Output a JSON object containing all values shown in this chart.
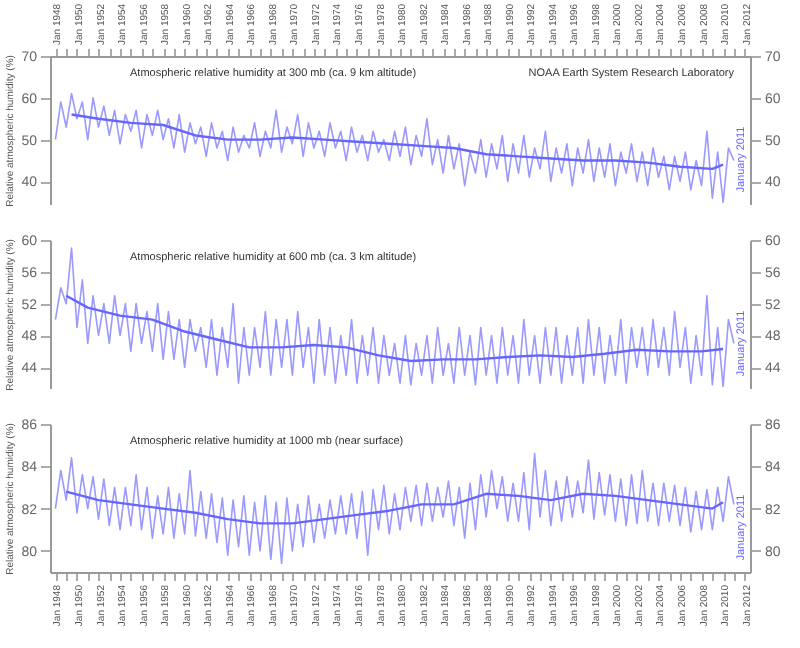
{
  "chart_data": [
    {
      "type": "line",
      "title": "Atmospheric relative humidity at 300 mb (ca. 9 km altitude)",
      "ylabel": "Relative atmospheric humidity (%)",
      "annotations": [
        "NOAA Earth System Research Laboratory",
        "January 2011"
      ],
      "xlim": [
        "1947-07",
        "2012-07"
      ],
      "ylim": [
        34.6,
        70
      ],
      "yticks": [
        40,
        50,
        60,
        70
      ],
      "y2lim": [
        34.6,
        70
      ],
      "y2ticks": [
        40,
        50,
        60,
        70
      ],
      "tick_labels": "xy",
      "grid": false,
      "line_style": "solid",
      "xticks": [
        {
          "value": "1948-01",
          "label": "Jan 1948"
        },
        {
          "value": "1949-01",
          "label": null
        },
        {
          "value": "1950-01",
          "label": "Jan 1950"
        },
        {
          "value": "1951-01",
          "label": null
        },
        {
          "value": "1952-01",
          "label": "Jan 1952"
        },
        {
          "value": "1953-01",
          "label": null
        },
        {
          "value": "1954-01",
          "label": "Jan 1954"
        },
        {
          "value": "1955-01",
          "label": null
        },
        {
          "value": "1956-01",
          "label": "Jan 1956"
        },
        {
          "value": "1957-01",
          "label": null
        },
        {
          "value": "1958-01",
          "label": "Jan 1958"
        },
        {
          "value": "1959-01",
          "label": null
        },
        {
          "value": "1960-01",
          "label": "Jan 1960"
        },
        {
          "value": "1961-01",
          "label": null
        },
        {
          "value": "1962-01",
          "label": "Jan 1962"
        },
        {
          "value": "1963-01",
          "label": null
        },
        {
          "value": "1964-01",
          "label": "Jan 1964"
        },
        {
          "value": "1965-01",
          "label": null
        },
        {
          "value": "1966-01",
          "label": "Jan 1966"
        },
        {
          "value": "1967-01",
          "label": null
        },
        {
          "value": "1968-01",
          "label": "Jan 1968"
        },
        {
          "value": "1969-01",
          "label": null
        },
        {
          "value": "1970-01",
          "label": "Jan 1970"
        },
        {
          "value": "1971-01",
          "label": null
        },
        {
          "value": "1972-01",
          "label": "Jan 1972"
        },
        {
          "value": "1973-01",
          "label": null
        },
        {
          "value": "1974-01",
          "label": "Jan 1974"
        },
        {
          "value": "1975-01",
          "label": null
        },
        {
          "value": "1976-01",
          "label": "Jan 1976"
        },
        {
          "value": "1977-01",
          "label": null
        },
        {
          "value": "1978-01",
          "label": "Jan 1978"
        },
        {
          "value": "1979-01",
          "label": null
        },
        {
          "value": "1980-01",
          "label": "Jan 1980"
        },
        {
          "value": "1981-01",
          "label": null
        },
        {
          "value": "1982-01",
          "label": "Jan 1982"
        },
        {
          "value": "1983-01",
          "label": null
        },
        {
          "value": "1984-01",
          "label": "Jan 1984"
        },
        {
          "value": "1985-01",
          "label": null
        },
        {
          "value": "1986-01",
          "label": "Jan 1986"
        },
        {
          "value": "1987-01",
          "label": null
        },
        {
          "value": "1988-01",
          "label": "Jan 1988"
        },
        {
          "value": "1989-01",
          "label": null
        },
        {
          "value": "1990-01",
          "label": "Jan 1990"
        },
        {
          "value": "1991-01",
          "label": null
        },
        {
          "value": "1992-01",
          "label": "Jan 1992"
        },
        {
          "value": "1993-01",
          "label": null
        },
        {
          "value": "1994-01",
          "label": "Jan 1994"
        },
        {
          "value": "1995-01",
          "label": null
        },
        {
          "value": "1996-01",
          "label": "Jan 1996"
        },
        {
          "value": "1997-01",
          "label": null
        },
        {
          "value": "1998-01",
          "label": "Jan 1998"
        },
        {
          "value": "1999-01",
          "label": null
        },
        {
          "value": "2000-01",
          "label": "Jan 2000"
        },
        {
          "value": "2001-01",
          "label": null
        },
        {
          "value": "2002-01",
          "label": "Jan 2002"
        },
        {
          "value": "2003-01",
          "label": null
        },
        {
          "value": "2004-01",
          "label": "Jan 2004"
        },
        {
          "value": "2005-01",
          "label": null
        },
        {
          "value": "2006-01",
          "label": "Jan 2006"
        },
        {
          "value": "2007-01",
          "label": null
        },
        {
          "value": "2008-01",
          "label": "Jan 2008"
        },
        {
          "value": "2009-01",
          "label": null
        },
        {
          "value": "2010-01",
          "label": "Jan 2010"
        },
        {
          "value": "2011-01",
          "label": null
        },
        {
          "value": "2012-01",
          "label": "Jan 2012"
        }
      ],
      "x": [
        "1948-01",
        "1948-07",
        "1949-01",
        "1949-07",
        "1950-01",
        "1950-07",
        "1951-01",
        "1951-07",
        "1952-01",
        "1952-07",
        "1953-01",
        "1953-07",
        "1954-01",
        "1954-07",
        "1955-01",
        "1955-07",
        "1956-01",
        "1956-07",
        "1957-01",
        "1957-07",
        "1958-01",
        "1958-07",
        "1959-01",
        "1959-07",
        "1960-01",
        "1960-07",
        "1961-01",
        "1961-07",
        "1962-01",
        "1962-07",
        "1963-01",
        "1963-07",
        "1964-01",
        "1964-07",
        "1965-01",
        "1965-07",
        "1966-01",
        "1966-07",
        "1967-01",
        "1967-07",
        "1968-01",
        "1968-07",
        "1969-01",
        "1969-07",
        "1970-01",
        "1970-07",
        "1971-01",
        "1971-07",
        "1972-01",
        "1972-07",
        "1973-01",
        "1973-07",
        "1974-01",
        "1974-07",
        "1975-01",
        "1975-07",
        "1976-01",
        "1976-07",
        "1977-01",
        "1977-07",
        "1978-01",
        "1978-07",
        "1979-01",
        "1979-07",
        "1980-01",
        "1980-07",
        "1981-01",
        "1981-07",
        "1982-01",
        "1982-07",
        "1983-01",
        "1983-07",
        "1984-01",
        "1984-07",
        "1985-01",
        "1985-07",
        "1986-01",
        "1986-07",
        "1987-01",
        "1987-07",
        "1988-01",
        "1988-07",
        "1989-01",
        "1989-07",
        "1990-01",
        "1990-07",
        "1991-01",
        "1991-07",
        "1992-01",
        "1992-07",
        "1993-01",
        "1993-07",
        "1994-01",
        "1994-07",
        "1995-01",
        "1995-07",
        "1996-01",
        "1996-07",
        "1997-01",
        "1997-07",
        "1998-01",
        "1998-07",
        "1999-01",
        "1999-07",
        "2000-01",
        "2000-07",
        "2001-01",
        "2001-07",
        "2002-01",
        "2002-07",
        "2003-01",
        "2003-07",
        "2004-01",
        "2004-07",
        "2005-01",
        "2005-07",
        "2006-01",
        "2006-07",
        "2007-01",
        "2007-07",
        "2008-01",
        "2008-07",
        "2009-01",
        "2009-07",
        "2010-01",
        "2010-07",
        "2011-01"
      ],
      "series": [
        {
          "color": "#9999ff",
          "values": [
            50,
            59,
            53,
            61,
            55,
            59,
            50,
            60,
            53,
            58,
            51,
            57,
            49,
            56,
            52,
            57,
            48,
            56,
            51,
            57,
            50,
            55,
            48,
            56,
            47,
            54,
            49,
            53,
            46,
            54,
            48,
            52,
            45,
            53,
            47,
            51,
            48,
            54,
            46,
            52,
            48,
            57,
            47,
            53,
            49,
            56,
            46,
            54,
            48,
            52,
            46,
            54,
            48,
            52,
            45,
            53,
            47,
            51,
            45,
            52,
            47,
            50,
            45,
            52,
            46,
            53,
            44,
            51,
            46,
            55,
            44,
            50,
            42,
            51,
            43,
            49,
            39,
            47,
            42,
            50,
            41,
            49,
            43,
            51,
            40,
            49,
            42,
            51,
            41,
            48,
            43,
            52,
            40,
            48,
            42,
            49,
            39,
            48,
            42,
            50,
            40,
            48,
            41,
            49,
            39,
            47,
            42,
            49,
            40,
            47,
            39,
            48,
            41,
            46,
            38,
            46,
            40,
            47,
            38,
            45,
            39,
            52,
            36,
            47,
            35,
            48,
            45
          ]
        },
        {
          "type": "line",
          "color": "#6666ff",
          "x": [
            "1949-07",
            "1952-01",
            "1955-01",
            "1958-01",
            "1961-01",
            "1964-01",
            "1967-01",
            "1970-01",
            "1973-01",
            "1976-01",
            "1979-01",
            "1982-01",
            "1985-01",
            "1988-01",
            "1991-01",
            "1994-01",
            "1997-01",
            "2000-01",
            "2003-01",
            "2006-01",
            "2009-01",
            "2010-01"
          ],
          "values": [
            56,
            55,
            54,
            53.5,
            51,
            50,
            50,
            50.5,
            50,
            49.5,
            49,
            48.5,
            48,
            46.5,
            46,
            45.5,
            45,
            45,
            44.5,
            43.5,
            43,
            44
          ]
        }
      ]
    },
    {
      "type": "line",
      "title": "Atmospheric relative humidity at 600 mb (ca. 3 km altitude)",
      "ylabel": "Relative atmospheric humidity (%)",
      "annotations": [
        "January 2011"
      ],
      "xlim": [
        "1947-07",
        "2012-07"
      ],
      "ylim": [
        41.4,
        60
      ],
      "yticks": [
        44,
        48,
        52,
        56,
        60
      ],
      "y2lim": [
        41.4,
        60
      ],
      "y2ticks": [
        44,
        48,
        52,
        56,
        60
      ],
      "tick_labels": "y",
      "grid": false,
      "line_style": "solid",
      "x": [
        "1948-01",
        "1948-07",
        "1949-01",
        "1949-07",
        "1950-01",
        "1950-07",
        "1951-01",
        "1951-07",
        "1952-01",
        "1952-07",
        "1953-01",
        "1953-07",
        "1954-01",
        "1954-07",
        "1955-01",
        "1955-07",
        "1956-01",
        "1956-07",
        "1957-01",
        "1957-07",
        "1958-01",
        "1958-07",
        "1959-01",
        "1959-07",
        "1960-01",
        "1960-07",
        "1961-01",
        "1961-07",
        "1962-01",
        "1962-07",
        "1963-01",
        "1963-07",
        "1964-01",
        "1964-07",
        "1965-01",
        "1965-07",
        "1966-01",
        "1966-07",
        "1967-01",
        "1967-07",
        "1968-01",
        "1968-07",
        "1969-01",
        "1969-07",
        "1970-01",
        "1970-07",
        "1971-01",
        "1971-07",
        "1972-01",
        "1972-07",
        "1973-01",
        "1973-07",
        "1974-01",
        "1974-07",
        "1975-01",
        "1975-07",
        "1976-01",
        "1976-07",
        "1977-01",
        "1977-07",
        "1978-01",
        "1978-07",
        "1979-01",
        "1979-07",
        "1980-01",
        "1980-07",
        "1981-01",
        "1981-07",
        "1982-01",
        "1982-07",
        "1983-01",
        "1983-07",
        "1984-01",
        "1984-07",
        "1985-01",
        "1985-07",
        "1986-01",
        "1986-07",
        "1987-01",
        "1987-07",
        "1988-01",
        "1988-07",
        "1989-01",
        "1989-07",
        "1990-01",
        "1990-07",
        "1991-01",
        "1991-07",
        "1992-01",
        "1992-07",
        "1993-01",
        "1993-07",
        "1994-01",
        "1994-07",
        "1995-01",
        "1995-07",
        "1996-01",
        "1996-07",
        "1997-01",
        "1997-07",
        "1998-01",
        "1998-07",
        "1999-01",
        "1999-07",
        "2000-01",
        "2000-07",
        "2001-01",
        "2001-07",
        "2002-01",
        "2002-07",
        "2003-01",
        "2003-07",
        "2004-01",
        "2004-07",
        "2005-01",
        "2005-07",
        "2006-01",
        "2006-07",
        "2007-01",
        "2007-07",
        "2008-01",
        "2008-07",
        "2009-01",
        "2009-07",
        "2010-01",
        "2010-07",
        "2011-01"
      ],
      "series": [
        {
          "color": "#9999ff",
          "values": [
            50,
            54,
            52,
            59,
            49,
            55,
            47,
            53,
            48,
            52,
            47,
            53,
            48,
            52,
            46,
            52,
            47,
            51,
            46,
            52,
            45,
            51,
            45,
            50,
            44,
            50,
            46,
            49,
            44,
            50,
            43,
            49,
            44,
            52,
            42,
            49,
            43,
            49,
            44,
            51,
            43,
            50,
            44,
            50,
            43,
            51,
            44,
            49,
            42,
            50,
            43,
            49,
            42,
            48,
            43,
            50,
            42,
            48,
            43,
            49,
            42,
            48,
            43,
            47,
            42,
            48,
            41.8,
            47,
            43,
            48,
            42,
            49,
            43,
            47,
            42,
            49,
            43,
            48,
            41.8,
            49,
            43,
            48,
            42,
            49,
            43,
            48,
            42,
            50,
            43,
            48,
            42,
            49,
            43,
            49,
            42,
            48,
            43,
            49,
            42,
            50,
            43,
            49,
            42,
            48,
            43,
            50,
            42,
            49,
            44,
            49,
            43,
            50,
            44,
            49,
            43,
            51,
            44,
            49,
            42,
            48,
            43,
            53,
            41.8,
            49,
            41.6,
            50,
            47
          ]
        },
        {
          "type": "line",
          "color": "#6666ff",
          "x": [
            "1949-01",
            "1951-01",
            "1954-01",
            "1957-01",
            "1960-01",
            "1963-01",
            "1966-01",
            "1969-01",
            "1972-01",
            "1975-01",
            "1978-01",
            "1981-01",
            "1984-01",
            "1987-01",
            "1990-01",
            "1993-01",
            "1996-01",
            "1999-01",
            "2002-01",
            "2005-01",
            "2008-01",
            "2010-01"
          ],
          "values": [
            53,
            51.5,
            50.5,
            50,
            48.5,
            47.5,
            46.5,
            46.5,
            46.8,
            46.5,
            45.5,
            44.8,
            45,
            45,
            45.3,
            45.5,
            45.3,
            45.7,
            46.2,
            46,
            46,
            46.3
          ]
        }
      ]
    },
    {
      "type": "line",
      "title": "Atmospheric relative humidity at 1000 mb (near surface)",
      "ylabel": "Relative atmospheric humidity (%)",
      "annotations": [
        "January 2011"
      ],
      "xlim": [
        "1947-07",
        "2012-07"
      ],
      "ylim": [
        79,
        86
      ],
      "yticks": [
        80,
        82,
        84,
        86
      ],
      "y2lim": [
        79,
        86
      ],
      "y2ticks": [
        80,
        82,
        84,
        86
      ],
      "grid": false,
      "line_style": "solid",
      "xticks": [
        {
          "value": "1948-01",
          "label": "Jan 1948"
        },
        {
          "value": "1949-01",
          "label": null
        },
        {
          "value": "1950-01",
          "label": "Jan 1950"
        },
        {
          "value": "1951-01",
          "label": null
        },
        {
          "value": "1952-01",
          "label": "Jan 1952"
        },
        {
          "value": "1953-01",
          "label": null
        },
        {
          "value": "1954-01",
          "label": "Jan 1954"
        },
        {
          "value": "1955-01",
          "label": null
        },
        {
          "value": "1956-01",
          "label": "Jan 1956"
        },
        {
          "value": "1957-01",
          "label": null
        },
        {
          "value": "1958-01",
          "label": "Jan 1958"
        },
        {
          "value": "1959-01",
          "label": null
        },
        {
          "value": "1960-01",
          "label": "Jan 1960"
        },
        {
          "value": "1961-01",
          "label": null
        },
        {
          "value": "1962-01",
          "label": "Jan 1962"
        },
        {
          "value": "1963-01",
          "label": null
        },
        {
          "value": "1964-01",
          "label": "Jan 1964"
        },
        {
          "value": "1965-01",
          "label": null
        },
        {
          "value": "1966-01",
          "label": "Jan 1966"
        },
        {
          "value": "1967-01",
          "label": null
        },
        {
          "value": "1968-01",
          "label": "Jan 1968"
        },
        {
          "value": "1969-01",
          "label": null
        },
        {
          "value": "1970-01",
          "label": "Jan 1970"
        },
        {
          "value": "1971-01",
          "label": null
        },
        {
          "value": "1972-01",
          "label": "Jan 1972"
        },
        {
          "value": "1973-01",
          "label": null
        },
        {
          "value": "1974-01",
          "label": "Jan 1974"
        },
        {
          "value": "1975-01",
          "label": null
        },
        {
          "value": "1976-01",
          "label": "Jan 1976"
        },
        {
          "value": "1977-01",
          "label": null
        },
        {
          "value": "1978-01",
          "label": "Jan 1978"
        },
        {
          "value": "1979-01",
          "label": null
        },
        {
          "value": "1980-01",
          "label": "Jan 1980"
        },
        {
          "value": "1981-01",
          "label": null
        },
        {
          "value": "1982-01",
          "label": "Jan 1982"
        },
        {
          "value": "1983-01",
          "label": null
        },
        {
          "value": "1984-01",
          "label": "Jan 1984"
        },
        {
          "value": "1985-01",
          "label": null
        },
        {
          "value": "1986-01",
          "label": "Jan 1986"
        },
        {
          "value": "1987-01",
          "label": null
        },
        {
          "value": "1988-01",
          "label": "Jan 1988"
        },
        {
          "value": "1989-01",
          "label": null
        },
        {
          "value": "1990-01",
          "label": "Jan 1990"
        },
        {
          "value": "1991-01",
          "label": null
        },
        {
          "value": "1992-01",
          "label": "Jan 1992"
        },
        {
          "value": "1993-01",
          "label": null
        },
        {
          "value": "1994-01",
          "label": "Jan 1994"
        },
        {
          "value": "1995-01",
          "label": null
        },
        {
          "value": "1996-01",
          "label": "Jan 1996"
        },
        {
          "value": "1997-01",
          "label": null
        },
        {
          "value": "1998-01",
          "label": "Jan 1998"
        },
        {
          "value": "1999-01",
          "label": null
        },
        {
          "value": "2000-01",
          "label": "Jan 2000"
        },
        {
          "value": "2001-01",
          "label": null
        },
        {
          "value": "2002-01",
          "label": "Jan 2002"
        },
        {
          "value": "2003-01",
          "label": null
        },
        {
          "value": "2004-01",
          "label": "Jan 2004"
        },
        {
          "value": "2005-01",
          "label": null
        },
        {
          "value": "2006-01",
          "label": "Jan 2006"
        },
        {
          "value": "2007-01",
          "label": null
        },
        {
          "value": "2008-01",
          "label": "Jan 2008"
        },
        {
          "value": "2009-01",
          "label": null
        },
        {
          "value": "2010-01",
          "label": "Jan 2010"
        },
        {
          "value": "2011-01",
          "label": null
        },
        {
          "value": "2012-01",
          "label": "Jan 2012"
        }
      ],
      "x": [
        "1948-01",
        "1948-07",
        "1949-01",
        "1949-07",
        "1950-01",
        "1950-07",
        "1951-01",
        "1951-07",
        "1952-01",
        "1952-07",
        "1953-01",
        "1953-07",
        "1954-01",
        "1954-07",
        "1955-01",
        "1955-07",
        "1956-01",
        "1956-07",
        "1957-01",
        "1957-07",
        "1958-01",
        "1958-07",
        "1959-01",
        "1959-07",
        "1960-01",
        "1960-07",
        "1961-01",
        "1961-07",
        "1962-01",
        "1962-07",
        "1963-01",
        "1963-07",
        "1964-01",
        "1964-07",
        "1965-01",
        "1965-07",
        "1966-01",
        "1966-07",
        "1967-01",
        "1967-07",
        "1968-01",
        "1968-07",
        "1969-01",
        "1969-07",
        "1970-01",
        "1970-07",
        "1971-01",
        "1971-07",
        "1972-01",
        "1972-07",
        "1973-01",
        "1973-07",
        "1974-01",
        "1974-07",
        "1975-01",
        "1975-07",
        "1976-01",
        "1976-07",
        "1977-01",
        "1977-07",
        "1978-01",
        "1978-07",
        "1979-01",
        "1979-07",
        "1980-01",
        "1980-07",
        "1981-01",
        "1981-07",
        "1982-01",
        "1982-07",
        "1983-01",
        "1983-07",
        "1984-01",
        "1984-07",
        "1985-01",
        "1985-07",
        "1986-01",
        "1986-07",
        "1987-01",
        "1987-07",
        "1988-01",
        "1988-07",
        "1989-01",
        "1989-07",
        "1990-01",
        "1990-07",
        "1991-01",
        "1991-07",
        "1992-01",
        "1992-07",
        "1993-01",
        "1993-07",
        "1994-01",
        "1994-07",
        "1995-01",
        "1995-07",
        "1996-01",
        "1996-07",
        "1997-01",
        "1997-07",
        "1998-01",
        "1998-07",
        "1999-01",
        "1999-07",
        "2000-01",
        "2000-07",
        "2001-01",
        "2001-07",
        "2002-01",
        "2002-07",
        "2003-01",
        "2003-07",
        "2004-01",
        "2004-07",
        "2005-01",
        "2005-07",
        "2006-01",
        "2006-07",
        "2007-01",
        "2007-07",
        "2008-01",
        "2008-07",
        "2009-01",
        "2009-07",
        "2010-01",
        "2010-07",
        "2011-01"
      ],
      "series": [
        {
          "color": "#9999ff",
          "values": [
            82,
            83.8,
            82.4,
            84.4,
            81.8,
            83.6,
            82,
            83.5,
            81.5,
            83.4,
            81.2,
            83,
            81,
            83,
            81.2,
            83.6,
            81,
            83,
            80.6,
            82.6,
            80.8,
            83,
            80.6,
            82.7,
            80.8,
            83.8,
            80.7,
            82.8,
            80.6,
            82.7,
            80.4,
            82.5,
            79.8,
            82.4,
            80.2,
            82.6,
            79.8,
            82.3,
            80,
            82.6,
            79.6,
            82.3,
            79.4,
            82.5,
            80,
            82.2,
            80.2,
            82.6,
            80.4,
            82.2,
            80.6,
            82.4,
            80.8,
            82.6,
            80.8,
            82.7,
            80.6,
            82.8,
            79.8,
            82.9,
            81,
            83.1,
            80.8,
            82.7,
            81,
            83,
            81.4,
            83.1,
            81.2,
            83.2,
            81.4,
            83,
            81.6,
            83.3,
            81.2,
            83,
            80.6,
            83.2,
            81,
            83.6,
            81.6,
            83.8,
            82,
            83.5,
            81.4,
            83.2,
            81.4,
            83.7,
            81,
            84.6,
            81.6,
            83.8,
            81.2,
            83.3,
            81.4,
            83.5,
            81.6,
            83.3,
            81.8,
            84.3,
            81.5,
            83.7,
            81.7,
            83.6,
            81.4,
            83.4,
            81.2,
            83.6,
            81.3,
            83.8,
            81.4,
            83.2,
            81.2,
            83.2,
            81.4,
            83.1,
            81.2,
            83,
            80.9,
            82.8,
            81,
            82.9,
            81,
            83,
            81.4,
            83.5,
            82.2
          ]
        },
        {
          "type": "line",
          "color": "#6666ff",
          "x": [
            "1949-01",
            "1952-01",
            "1955-01",
            "1958-01",
            "1961-01",
            "1964-01",
            "1967-01",
            "1970-01",
            "1973-01",
            "1976-01",
            "1979-01",
            "1982-01",
            "1985-01",
            "1988-01",
            "1991-01",
            "1994-01",
            "1997-01",
            "2000-01",
            "2003-01",
            "2006-01",
            "2009-01",
            "2010-01"
          ],
          "values": [
            82.8,
            82.4,
            82.2,
            82,
            81.8,
            81.5,
            81.3,
            81.3,
            81.5,
            81.7,
            81.9,
            82.2,
            82.2,
            82.7,
            82.6,
            82.4,
            82.7,
            82.6,
            82.4,
            82.2,
            82,
            82.3
          ]
        }
      ]
    }
  ]
}
